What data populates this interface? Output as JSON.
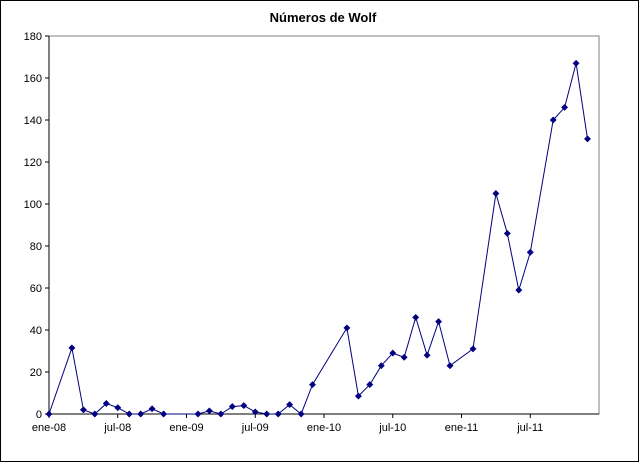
{
  "chart_data": {
    "type": "line",
    "title": "Números de Wolf",
    "xlabel": "",
    "ylabel": "",
    "ylim": [
      0,
      180
    ],
    "y_ticks": [
      0,
      20,
      40,
      60,
      80,
      100,
      120,
      140,
      160,
      180
    ],
    "x_ticks": [
      {
        "date": "2008-01",
        "label": "ene-08"
      },
      {
        "date": "2008-07",
        "label": "jul-08"
      },
      {
        "date": "2009-01",
        "label": "ene-09"
      },
      {
        "date": "2009-07",
        "label": "jul-09"
      },
      {
        "date": "2010-01",
        "label": "ene-10"
      },
      {
        "date": "2010-07",
        "label": "jul-10"
      },
      {
        "date": "2011-01",
        "label": "ene-11"
      },
      {
        "date": "2011-07",
        "label": "jul-11"
      }
    ],
    "xlim": [
      "2008-01",
      "2011-12"
    ],
    "grid": false,
    "legend": "none",
    "series": [
      {
        "color": "#000080",
        "marker": "diamond",
        "points": [
          {
            "x": "2008-01",
            "y": 0
          },
          {
            "x": "2008-03",
            "y": 31.5
          },
          {
            "x": "2008-04",
            "y": 2
          },
          {
            "x": "2008-05",
            "y": 0
          },
          {
            "x": "2008-06",
            "y": 5
          },
          {
            "x": "2008-07",
            "y": 3
          },
          {
            "x": "2008-08",
            "y": 0
          },
          {
            "x": "2008-09",
            "y": 0
          },
          {
            "x": "2008-10",
            "y": 2.5
          },
          {
            "x": "2008-11",
            "y": 0
          },
          {
            "x": "2009-02",
            "y": 0
          },
          {
            "x": "2009-03",
            "y": 1.5
          },
          {
            "x": "2009-04",
            "y": 0
          },
          {
            "x": "2009-05",
            "y": 3.5
          },
          {
            "x": "2009-06",
            "y": 4
          },
          {
            "x": "2009-07",
            "y": 1
          },
          {
            "x": "2009-08",
            "y": 0
          },
          {
            "x": "2009-09",
            "y": 0
          },
          {
            "x": "2009-10",
            "y": 4.5
          },
          {
            "x": "2009-11",
            "y": 0
          },
          {
            "x": "2009-12",
            "y": 14
          },
          {
            "x": "2010-03",
            "y": 41
          },
          {
            "x": "2010-04",
            "y": 8.5
          },
          {
            "x": "2010-05",
            "y": 14
          },
          {
            "x": "2010-06",
            "y": 23
          },
          {
            "x": "2010-07",
            "y": 29
          },
          {
            "x": "2010-08",
            "y": 27
          },
          {
            "x": "2010-09",
            "y": 46
          },
          {
            "x": "2010-10",
            "y": 28
          },
          {
            "x": "2010-11",
            "y": 44
          },
          {
            "x": "2010-12",
            "y": 23
          },
          {
            "x": "2011-02",
            "y": 31
          },
          {
            "x": "2011-04",
            "y": 105
          },
          {
            "x": "2011-05",
            "y": 86
          },
          {
            "x": "2011-06",
            "y": 59
          },
          {
            "x": "2011-07",
            "y": 77
          },
          {
            "x": "2011-09",
            "y": 140
          },
          {
            "x": "2011-10",
            "y": 146
          },
          {
            "x": "2011-11",
            "y": 167
          },
          {
            "x": "2011-12",
            "y": 131
          }
        ]
      }
    ]
  }
}
